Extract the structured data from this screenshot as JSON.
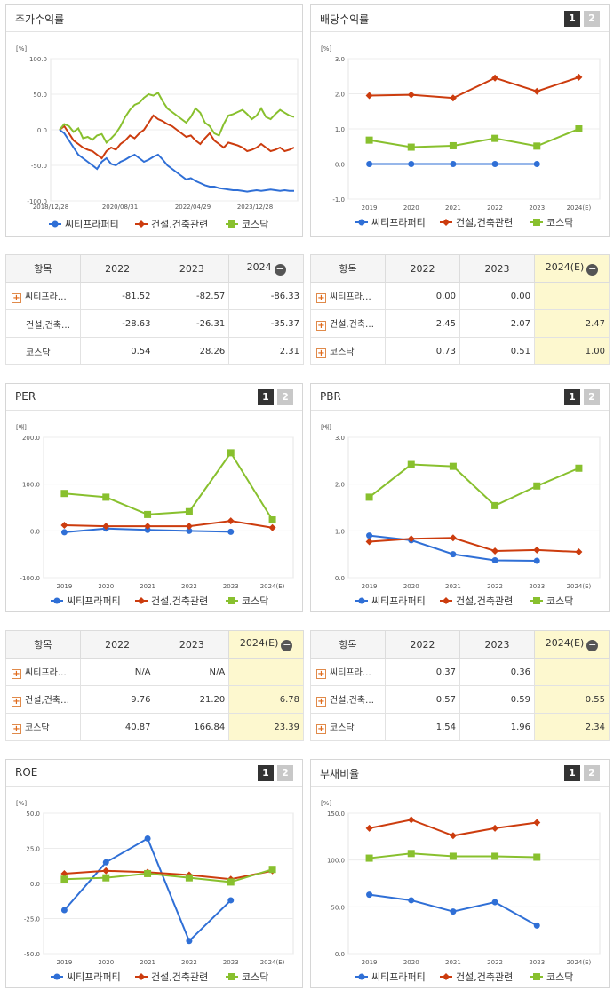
{
  "legend": [
    "씨티프라퍼티",
    "건설,건축관련",
    "코스닥"
  ],
  "colors": [
    "#2f6fd6",
    "#cc3c0e",
    "#88c02e"
  ],
  "stock": {
    "title": "주가수익률",
    "unit": "[%]",
    "yticks": [
      "100.0",
      "50.0",
      "0.0",
      "-50.0",
      "-100.0"
    ],
    "xticks": [
      "2018/12/28",
      "2020/08/31",
      "2022/04/29",
      "2023/12/28"
    ]
  },
  "charts": [
    {
      "title": "배당수익률",
      "unit": "[%]",
      "yticks": [
        "3.0",
        "2.0",
        "1.0",
        "0.0",
        "-1.0"
      ],
      "ylim": [
        -1,
        3
      ],
      "xticks": [
        "2019",
        "2020",
        "2021",
        "2022",
        "2023",
        "2024(E)"
      ],
      "series": [
        [
          0.0,
          0.0,
          0.0,
          0.0,
          0.0,
          null
        ],
        [
          1.95,
          1.97,
          1.88,
          2.45,
          2.07,
          2.47
        ],
        [
          0.68,
          0.48,
          0.52,
          0.73,
          0.51,
          1.0
        ]
      ]
    },
    {
      "title": "PER",
      "unit": "[배]",
      "yticks": [
        "200.0",
        "100.0",
        "0.0",
        "-100.0"
      ],
      "ylim": [
        -100,
        200
      ],
      "xticks": [
        "2019",
        "2020",
        "2021",
        "2022",
        "2023",
        "2024(E)"
      ],
      "series": [
        [
          -3,
          5,
          2,
          0,
          -2,
          null
        ],
        [
          12,
          10,
          10,
          10,
          21.2,
          6.78
        ],
        [
          80,
          72,
          35,
          41,
          167,
          23.39
        ]
      ]
    },
    {
      "title": "PBR",
      "unit": "[배]",
      "yticks": [
        "3.0",
        "2.0",
        "1.0",
        "0.0"
      ],
      "ylim": [
        0,
        3
      ],
      "xticks": [
        "2019",
        "2020",
        "2021",
        "2022",
        "2023",
        "2024(E)"
      ],
      "series": [
        [
          0.9,
          0.8,
          0.5,
          0.37,
          0.36,
          null
        ],
        [
          0.77,
          0.83,
          0.85,
          0.57,
          0.59,
          0.55
        ],
        [
          1.72,
          2.42,
          2.38,
          1.54,
          1.96,
          2.34
        ]
      ]
    },
    {
      "title": "ROE",
      "unit": "[%]",
      "yticks": [
        "50.0",
        "25.0",
        "0.0",
        "-25.0",
        "-50.0"
      ],
      "ylim": [
        -50,
        50
      ],
      "xticks": [
        "2019",
        "2020",
        "2021",
        "2022",
        "2023",
        "2024(E)"
      ],
      "series": [
        [
          -19,
          15,
          32,
          -41,
          -12,
          null
        ],
        [
          7,
          9,
          8,
          6,
          3,
          9
        ],
        [
          3,
          4,
          7,
          4,
          1,
          10
        ]
      ]
    },
    {
      "title": "부채비율",
      "unit": "[%]",
      "yticks": [
        "150.0",
        "100.0",
        "50.0",
        "0.0"
      ],
      "ylim": [
        0,
        150
      ],
      "xticks": [
        "2019",
        "2020",
        "2021",
        "2022",
        "2023",
        "2024(E)"
      ],
      "series": [
        [
          63,
          57,
          45,
          55,
          30,
          null
        ],
        [
          134,
          143,
          126,
          134,
          140,
          null
        ],
        [
          102,
          107,
          104,
          104,
          103,
          null
        ]
      ]
    }
  ],
  "tables": [
    {
      "header": [
        "항목",
        "2022",
        "2023",
        "2024"
      ],
      "rows": [
        {
          "name": "씨티프라…",
          "plus": true,
          "values": [
            "-81.52",
            "-82.57",
            "-86.33"
          ]
        },
        {
          "name": "건설,건축…",
          "plus": false,
          "values": [
            "-28.63",
            "-26.31",
            "-35.37"
          ]
        },
        {
          "name": "코스닥",
          "plus": false,
          "values": [
            "0.54",
            "28.26",
            "2.31"
          ]
        }
      ]
    },
    {
      "header": [
        "항목",
        "2022",
        "2023",
        "2024(E)"
      ],
      "rows": [
        {
          "name": "씨티프라…",
          "plus": true,
          "values": [
            "0.00",
            "0.00",
            ""
          ]
        },
        {
          "name": "건설,건축…",
          "plus": true,
          "values": [
            "2.45",
            "2.07",
            "2.47"
          ]
        },
        {
          "name": "코스닥",
          "plus": true,
          "values": [
            "0.73",
            "0.51",
            "1.00"
          ]
        }
      ]
    },
    {
      "header": [
        "항목",
        "2022",
        "2023",
        "2024(E)"
      ],
      "rows": [
        {
          "name": "씨티프라…",
          "plus": true,
          "values": [
            "N/A",
            "N/A",
            ""
          ]
        },
        {
          "name": "건설,건축…",
          "plus": true,
          "values": [
            "9.76",
            "21.20",
            "6.78"
          ]
        },
        {
          "name": "코스닥",
          "plus": true,
          "values": [
            "40.87",
            "166.84",
            "23.39"
          ]
        }
      ]
    },
    {
      "header": [
        "항목",
        "2022",
        "2023",
        "2024(E)"
      ],
      "rows": [
        {
          "name": "씨티프라…",
          "plus": true,
          "values": [
            "0.37",
            "0.36",
            ""
          ]
        },
        {
          "name": "건설,건축…",
          "plus": true,
          "values": [
            "0.57",
            "0.59",
            "0.55"
          ]
        },
        {
          "name": "코스닥",
          "plus": true,
          "values": [
            "1.54",
            "1.96",
            "2.34"
          ]
        }
      ]
    }
  ],
  "pager": [
    "1",
    "2"
  ]
}
